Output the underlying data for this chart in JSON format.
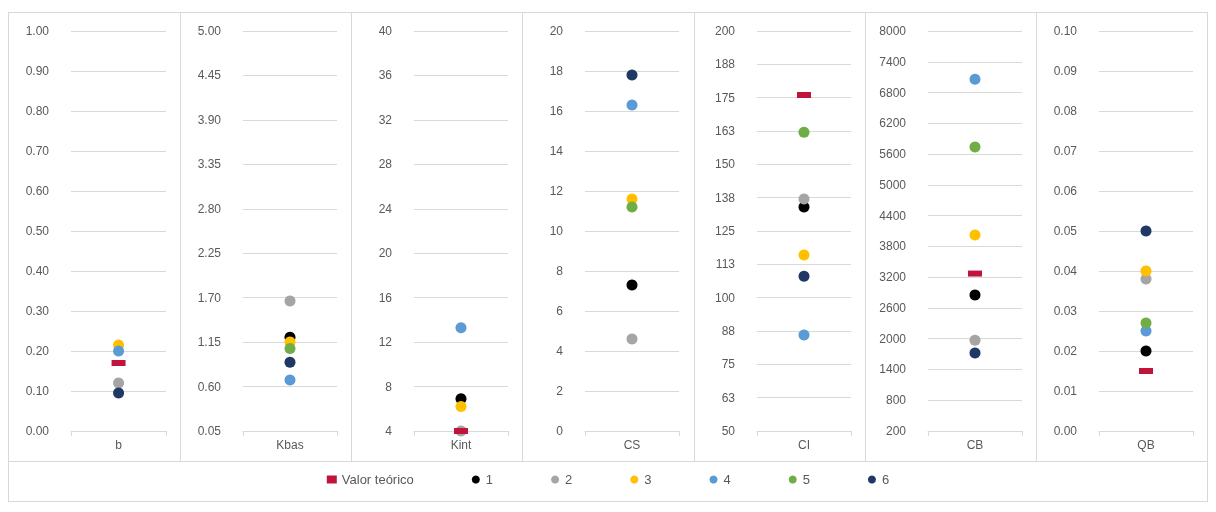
{
  "chart_data": [
    {
      "type": "scatter",
      "categories": [
        "b"
      ],
      "ylim": [
        0,
        1
      ],
      "yticks": [
        {
          "value": 0,
          "label": "0.00"
        },
        {
          "value": 0.1,
          "label": "0.10"
        },
        {
          "value": 0.2,
          "label": "0.20"
        },
        {
          "value": 0.3,
          "label": "0.30"
        },
        {
          "value": 0.4,
          "label": "0.40"
        },
        {
          "value": 0.5,
          "label": "0.50"
        },
        {
          "value": 0.6,
          "label": "0.60"
        },
        {
          "value": 0.7,
          "label": "0.70"
        },
        {
          "value": 0.8,
          "label": "0.80"
        },
        {
          "value": 0.9,
          "label": "0.90"
        },
        {
          "value": 1,
          "label": "1.00"
        }
      ],
      "grid": "y",
      "marker": "circle",
      "legend": "bottom",
      "series": [
        {
          "name": "Valor teórico",
          "color": "#c0143c",
          "values": [
            0.17
          ],
          "marker": "square"
        },
        {
          "name": "1",
          "color": "#000000",
          "values": [
            null
          ]
        },
        {
          "name": "2",
          "color": "#a5a5a5",
          "values": [
            0.12
          ]
        },
        {
          "name": "3",
          "color": "#ffc000",
          "values": [
            0.215
          ]
        },
        {
          "name": "4",
          "color": "#5b9bd5",
          "values": [
            0.2
          ]
        },
        {
          "name": "5",
          "color": "#70ad47",
          "values": [
            null
          ]
        },
        {
          "name": "6",
          "color": "#1f3864",
          "values": [
            0.095
          ]
        }
      ]
    },
    {
      "type": "scatter",
      "categories": [
        "Kbas"
      ],
      "ylim": [
        0.05,
        5
      ],
      "yticks": [
        0.05,
        {
          "value": 0.6,
          "label": "0.60"
        },
        1.15,
        {
          "value": 1.7,
          "label": "1.70"
        },
        2.25,
        {
          "value": 2.8,
          "label": "2.80"
        },
        3.35,
        {
          "value": 3.9,
          "label": "3.90"
        },
        4.45,
        {
          "value": 5,
          "label": "5.00"
        }
      ],
      "grid": "y",
      "marker": "circle",
      "legend": "bottom",
      "series": [
        {
          "color": "#c0143c",
          "values": [
            null
          ],
          "marker": "square"
        },
        {
          "color": "#000000",
          "values": [
            1.21
          ]
        },
        {
          "color": "#a5a5a5",
          "values": [
            1.66
          ]
        },
        {
          "color": "#ffc000",
          "values": [
            1.15
          ]
        },
        {
          "color": "#5b9bd5",
          "values": [
            0.68
          ]
        },
        {
          "color": "#70ad47",
          "values": [
            1.07
          ]
        },
        {
          "color": "#1f3864",
          "values": [
            0.9
          ]
        }
      ]
    },
    {
      "type": "scatter",
      "categories": [
        "Kint"
      ],
      "ylim": [
        4,
        40
      ],
      "yticks": [
        4,
        8,
        12,
        16,
        20,
        24,
        28,
        32,
        36,
        40
      ],
      "grid": "y",
      "marker": "circle",
      "legend": "bottom",
      "series": [
        {
          "color": "#c0143c",
          "values": [
            4
          ],
          "marker": "square"
        },
        {
          "color": "#000000",
          "values": [
            6.9
          ]
        },
        {
          "color": "#a5a5a5",
          "values": [
            4
          ]
        },
        {
          "color": "#ffc000",
          "values": [
            6.2
          ]
        },
        {
          "color": "#5b9bd5",
          "values": [
            13.3
          ]
        },
        {
          "color": "#70ad47",
          "values": [
            null
          ]
        },
        {
          "color": "#1f3864",
          "values": [
            null
          ]
        }
      ]
    },
    {
      "type": "scatter",
      "categories": [
        "CS"
      ],
      "ylim": [
        0,
        20
      ],
      "yticks": [
        0,
        2,
        4,
        6,
        8,
        10,
        12,
        14,
        16,
        18,
        20
      ],
      "grid": "y",
      "marker": "circle",
      "legend": "bottom",
      "series": [
        {
          "color": "#c0143c",
          "values": [
            null
          ],
          "marker": "square"
        },
        {
          "color": "#000000",
          "values": [
            7.3
          ]
        },
        {
          "color": "#a5a5a5",
          "values": [
            4.6
          ]
        },
        {
          "color": "#ffc000",
          "values": [
            11.6
          ]
        },
        {
          "color": "#5b9bd5",
          "values": [
            16.3
          ]
        },
        {
          "color": "#70ad47",
          "values": [
            11.2
          ]
        },
        {
          "color": "#1f3864",
          "values": [
            17.8
          ]
        }
      ]
    },
    {
      "type": "scatter",
      "categories": [
        "CI"
      ],
      "ylim": [
        50,
        200
      ],
      "yticks": [
        50,
        {
          "value": 62.5,
          "label": "63"
        },
        75,
        {
          "value": 87.5,
          "label": "88"
        },
        100,
        {
          "value": 112.5,
          "label": "113"
        },
        125,
        {
          "value": 137.5,
          "label": "138"
        },
        150,
        {
          "value": 162.5,
          "label": "163"
        },
        175,
        {
          "value": 187.5,
          "label": "188"
        },
        200
      ],
      "grid": "y",
      "marker": "circle",
      "legend": "bottom",
      "series": [
        {
          "color": "#c0143c",
          "values": [
            176
          ],
          "marker": "square"
        },
        {
          "color": "#000000",
          "values": [
            134
          ]
        },
        {
          "color": "#a5a5a5",
          "values": [
            137
          ]
        },
        {
          "color": "#ffc000",
          "values": [
            116
          ]
        },
        {
          "color": "#5b9bd5",
          "values": [
            86
          ]
        },
        {
          "color": "#70ad47",
          "values": [
            162
          ]
        },
        {
          "color": "#1f3864",
          "values": [
            108
          ]
        }
      ]
    },
    {
      "type": "scatter",
      "categories": [
        "CB"
      ],
      "ylim": [
        200,
        8000
      ],
      "yticks": [
        200,
        800,
        1400,
        2000,
        2600,
        3200,
        3800,
        4400,
        5000,
        5600,
        6200,
        6800,
        7400,
        8000
      ],
      "grid": "y",
      "marker": "circle",
      "legend": "bottom",
      "series": [
        {
          "color": "#c0143c",
          "values": [
            3270
          ],
          "marker": "square"
        },
        {
          "color": "#000000",
          "values": [
            2850
          ]
        },
        {
          "color": "#a5a5a5",
          "values": [
            1970
          ]
        },
        {
          "color": "#ffc000",
          "values": [
            4020
          ]
        },
        {
          "color": "#5b9bd5",
          "values": [
            7060
          ]
        },
        {
          "color": "#70ad47",
          "values": [
            5740
          ]
        },
        {
          "color": "#1f3864",
          "values": [
            1720
          ]
        }
      ]
    },
    {
      "type": "scatter",
      "categories": [
        "QB"
      ],
      "ylim": [
        0,
        0.1
      ],
      "yticks": [
        {
          "value": 0,
          "label": "0.00"
        },
        0.01,
        0.02,
        0.03,
        0.04,
        0.05,
        0.06,
        0.07,
        0.08,
        0.09,
        {
          "value": 0.1,
          "label": "0.10"
        }
      ],
      "grid": "y",
      "marker": "circle",
      "legend": "bottom",
      "series": [
        {
          "color": "#c0143c",
          "values": [
            0.015
          ],
          "marker": "square"
        },
        {
          "color": "#000000",
          "values": [
            0.02
          ]
        },
        {
          "color": "#a5a5a5",
          "values": [
            0.038
          ]
        },
        {
          "color": "#ffc000",
          "values": [
            0.04
          ]
        },
        {
          "color": "#5b9bd5",
          "values": [
            0.025
          ]
        },
        {
          "color": "#70ad47",
          "values": [
            0.027
          ]
        },
        {
          "color": "#1f3864",
          "values": [
            0.05
          ]
        }
      ]
    }
  ]
}
